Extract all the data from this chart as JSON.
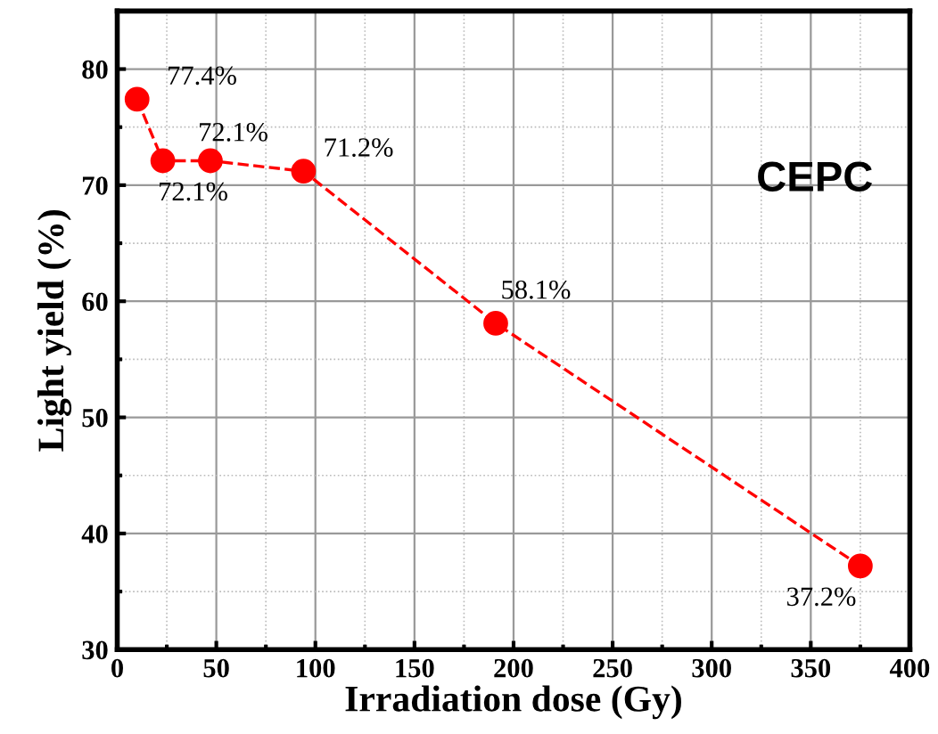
{
  "chart_data": {
    "type": "line",
    "xlabel": "Irradiation dose (Gy)",
    "ylabel": "Light yield (%)",
    "x": [
      10,
      23,
      47,
      94,
      191,
      375
    ],
    "series": [
      {
        "color": "#ff0000",
        "values": [
          77.4,
          72.1,
          72.1,
          71.2,
          58.1,
          37.2
        ],
        "value_labels": [
          "77.4%",
          "72.1%",
          "72.1%",
          "71.2%",
          "58.1%",
          "37.2%"
        ]
      }
    ],
    "xlim": [
      0,
      400
    ],
    "ylim": [
      30,
      85
    ],
    "xticks": [
      0,
      50,
      100,
      150,
      200,
      250,
      300,
      350,
      400
    ],
    "yticks": [
      30,
      40,
      50,
      60,
      70,
      80
    ],
    "grid": true,
    "marker": "circle",
    "line_style": "dashed",
    "annotations": [
      "CEPC"
    ]
  }
}
